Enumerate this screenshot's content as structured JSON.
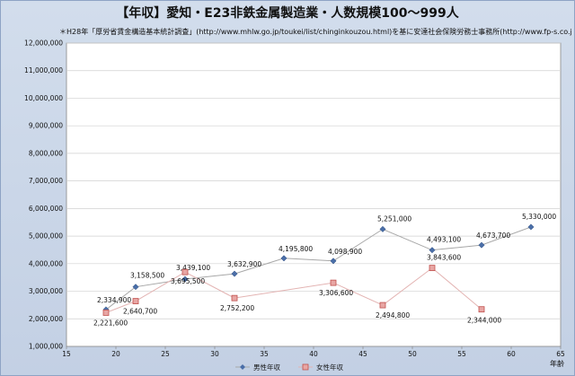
{
  "title": "【年収】愛知・E23非鉄金属製造業・人数規模100〜999人",
  "subtitle": "＊H28年「厚労省賃金構造基本統計調査」(http://www.mhlw.go.jp/toukei/list/chinginkouzou.html)を基に安達社会保険労務士事務所(http://www.fp-s.co.jp)が作成",
  "chart_data": {
    "type": "line",
    "title": "【年収】愛知・E23非鉄金属製造業・人数規模100〜999人",
    "xlabel": "年齢",
    "ylabel": "",
    "xlim": [
      15,
      65
    ],
    "ylim": [
      1000000,
      12000000
    ],
    "x_ticks": [
      15,
      20,
      25,
      30,
      35,
      40,
      45,
      50,
      55,
      60,
      65
    ],
    "y_ticks": [
      1000000,
      2000000,
      3000000,
      4000000,
      5000000,
      6000000,
      7000000,
      8000000,
      9000000,
      10000000,
      11000000,
      12000000
    ],
    "y_tick_labels": [
      "1,000,000",
      "2,000,000",
      "3,000,000",
      "4,000,000",
      "5,000,000",
      "6,000,000",
      "7,000,000",
      "8,000,000",
      "9,000,000",
      "10,000,000",
      "11,000,000",
      "12,000,000"
    ],
    "grid": true,
    "legend_position": "bottom",
    "series": [
      {
        "name": "男性年収",
        "color": "#4a6ea8",
        "marker": "diamond",
        "points": [
          {
            "x": 19,
            "y": 2334900,
            "label": "2,334,900"
          },
          {
            "x": 22,
            "y": 3158500,
            "label": "3,158,500"
          },
          {
            "x": 27,
            "y": 3439100,
            "label": "3,439,100"
          },
          {
            "x": 32,
            "y": 3632900,
            "label": "3,632,900"
          },
          {
            "x": 37,
            "y": 4195800,
            "label": "4,195,800"
          },
          {
            "x": 42,
            "y": 4098900,
            "label": "4,098,900"
          },
          {
            "x": 47,
            "y": 5251000,
            "label": "5,251,000"
          },
          {
            "x": 52,
            "y": 4493100,
            "label": "4,493,100"
          },
          {
            "x": 57,
            "y": 4673700,
            "label": "4,673,700"
          },
          {
            "x": 62,
            "y": 5330000,
            "label": "5,330,000"
          }
        ]
      },
      {
        "name": "女性年収",
        "color": "#c0504d",
        "marker": "square",
        "points": [
          {
            "x": 19,
            "y": 2221600,
            "label": "2,221,600"
          },
          {
            "x": 22,
            "y": 2640700,
            "label": "2,640,700"
          },
          {
            "x": 27,
            "y": 3695500,
            "label": "3,695,500"
          },
          {
            "x": 32,
            "y": 2752200,
            "label": "2,752,200"
          },
          {
            "x": 42,
            "y": 3306600,
            "label": "3,306,600"
          },
          {
            "x": 47,
            "y": 2494800,
            "label": "2,494,800"
          },
          {
            "x": 52,
            "y": 3843600,
            "label": "3,843,600"
          },
          {
            "x": 57,
            "y": 2344000,
            "label": "2,344,000"
          }
        ]
      }
    ]
  }
}
